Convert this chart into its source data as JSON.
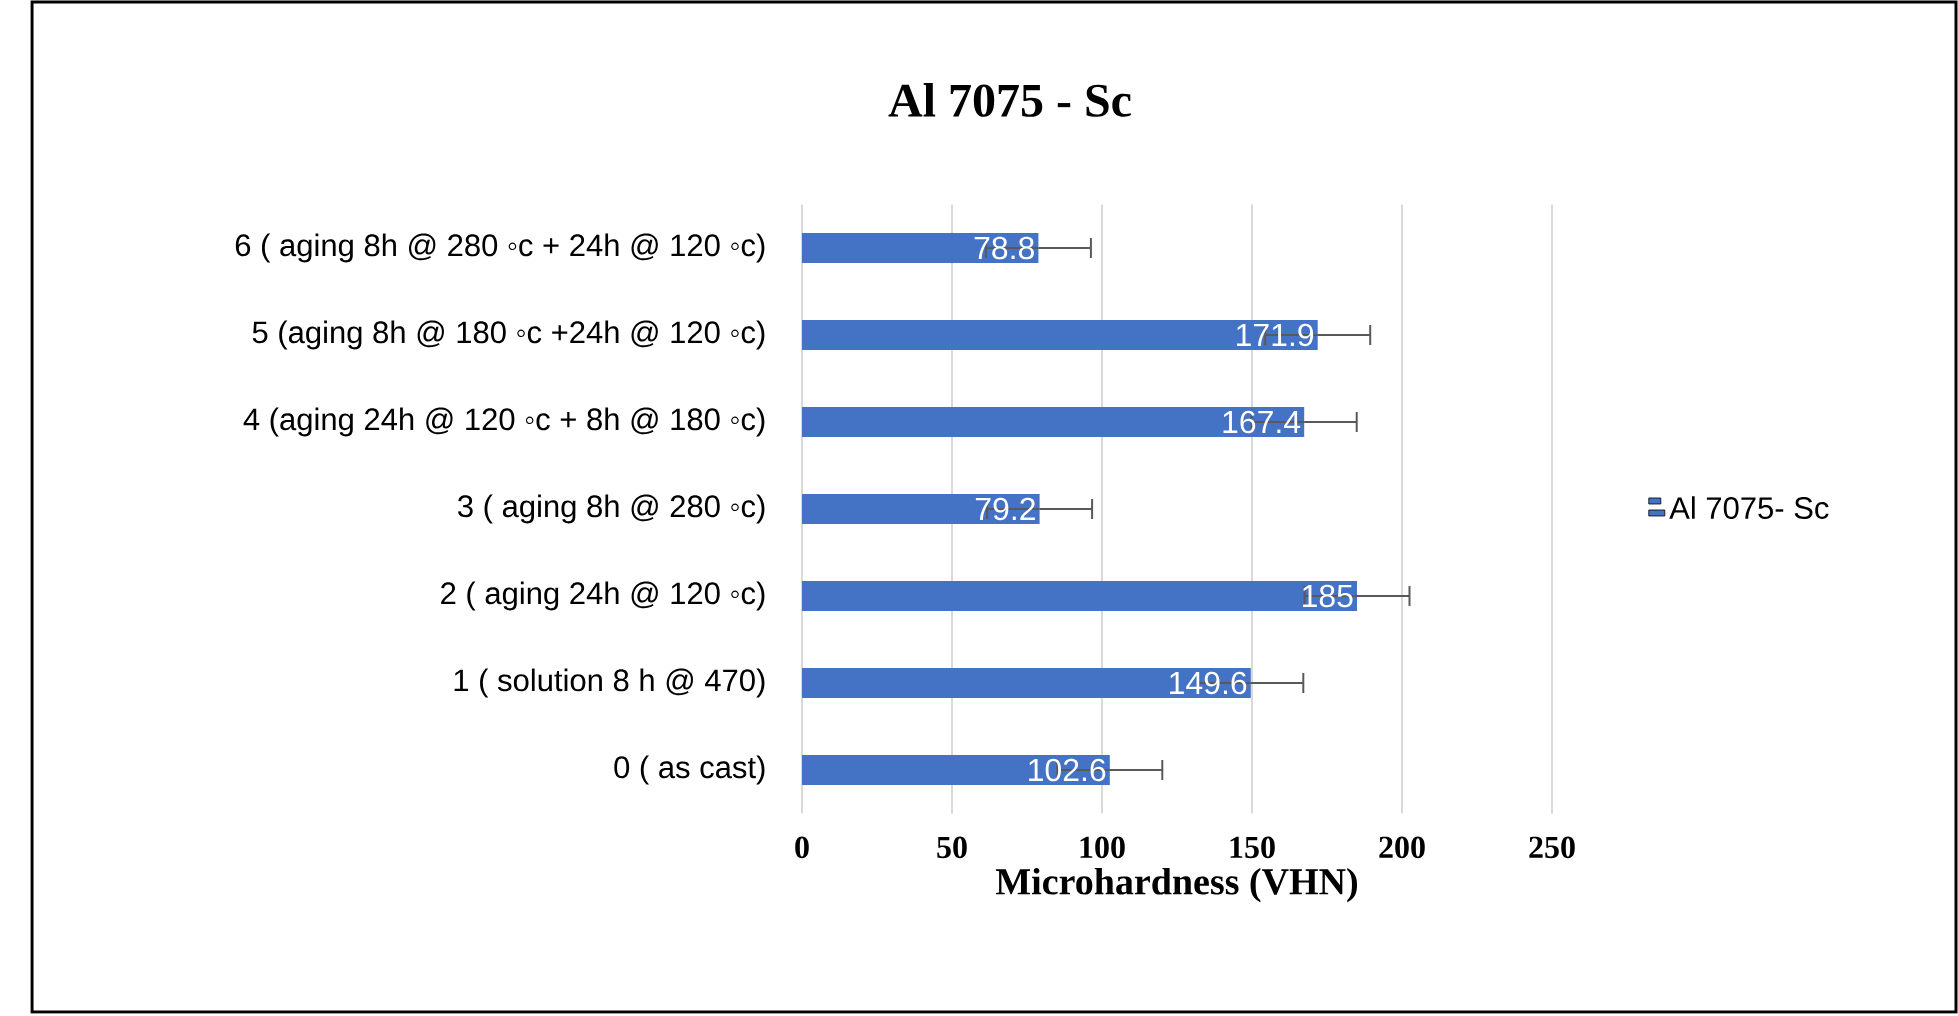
{
  "chart_data": {
    "type": "bar",
    "orientation": "horizontal",
    "title": "Al 7075 - Sc",
    "xlabel": "Microhardness (VHN)",
    "categories": [
      "6 (  aging 8h @ 280 ◦c + 24h @ 120 ◦c)",
      "5 (aging 8h @ 180 ◦c +24h @ 120 ◦c)",
      "4 (aging 24h @ 120 ◦c + 8h @ 180 ◦c)",
      "3 ( aging 8h @ 280 ◦c)",
      "2 ( aging 24h @ 120 ◦c)",
      "1 ( solution 8 h @ 470)",
      "0 ( as cast)"
    ],
    "series": [
      {
        "name": "Al 7075- Sc",
        "color": "#4472c4",
        "values": [
          78.8,
          171.9,
          167.4,
          79.2,
          185,
          149.6,
          102.6
        ],
        "errors": [
          17.5,
          17.5,
          17.5,
          17.5,
          17.5,
          17.5,
          17.5
        ]
      }
    ],
    "xlim": [
      0,
      250
    ],
    "xticks": [
      0,
      50,
      100,
      150,
      200,
      250
    ],
    "grid": "x",
    "legend": "right",
    "data_labels": true
  }
}
